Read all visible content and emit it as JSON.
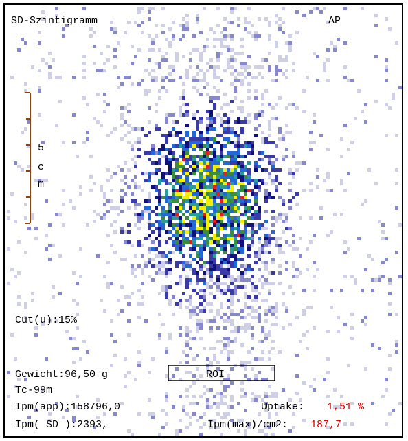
{
  "header": {
    "title": "SD-Szintigramm",
    "view": "AP"
  },
  "scale": {
    "label": [
      "5",
      "c",
      "m"
    ]
  },
  "cut": "Cut(u):15%",
  "info": {
    "weight": "Gewicht:96,50 g",
    "roi": "ROI",
    "isotope": "Tc-99m",
    "ipm_app": "Ipm(app):158796,0",
    "uptake_label": "Uptake:",
    "uptake_value": "1,51 %",
    "ipm_sd": "Ipm( SD ):2393,",
    "ipm_max_label": "Ipm(max)/cm2:",
    "ipm_max_value": "187,7"
  }
}
